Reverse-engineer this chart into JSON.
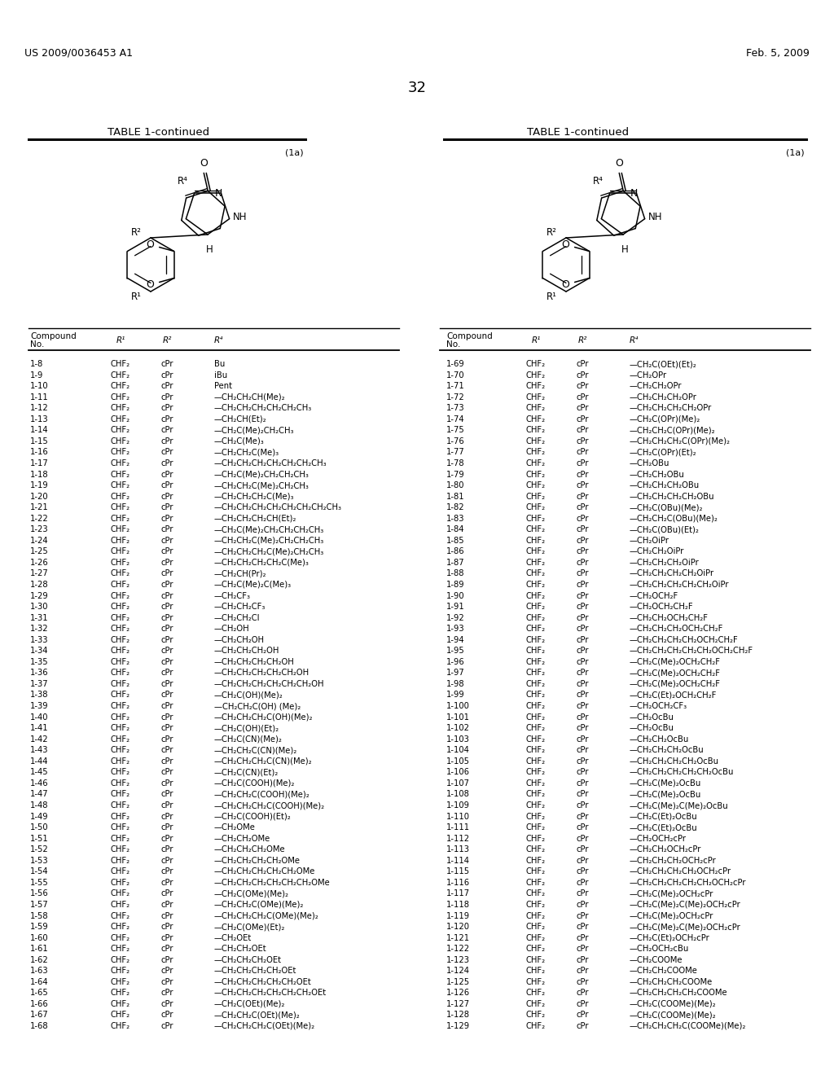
{
  "header_left": "US 2009/0036453 A1",
  "header_right": "Feb. 5, 2009",
  "page_number": "32",
  "table_title": "TABLE 1-continued",
  "formula_label": "(1a)",
  "background_color": "#ffffff",
  "text_color": "#000000",
  "left_data": [
    [
      "1-8",
      "CHF₂",
      "cPr",
      "Bu"
    ],
    [
      "1-9",
      "CHF₂",
      "cPr",
      "iBu"
    ],
    [
      "1-10",
      "CHF₂",
      "cPr",
      "Pent"
    ],
    [
      "1-11",
      "CHF₂",
      "cPr",
      "—CH₂CH₂CH(Me)₂"
    ],
    [
      "1-12",
      "CHF₂",
      "cPr",
      "—CH₂CH₂CH₂CH₂CH₂CH₃"
    ],
    [
      "1-13",
      "CHF₂",
      "cPr",
      "—CH₂CH(Et)₂"
    ],
    [
      "1-14",
      "CHF₂",
      "cPr",
      "—CH₂C(Me)₂CH₂CH₃"
    ],
    [
      "1-15",
      "CHF₂",
      "cPr",
      "—CH₂C(Me)₃"
    ],
    [
      "1-16",
      "CHF₂",
      "cPr",
      "—CH₂CH₂C(Me)₃"
    ],
    [
      "1-17",
      "CHF₂",
      "cPr",
      "—CH₂CH₂CH₂CH₂CH₂CH₂CH₃"
    ],
    [
      "1-18",
      "CHF₂",
      "cPr",
      "—CH₂C(Me)₂CH₂CH₂CH₃"
    ],
    [
      "1-19",
      "CHF₂",
      "cPr",
      "—CH₂CH₂C(Me)₂CH₂CH₃"
    ],
    [
      "1-20",
      "CHF₂",
      "cPr",
      "—CH₂CH₂CH₂C(Me)₃"
    ],
    [
      "1-21",
      "CHF₂",
      "cPr",
      "—CH₂CH₂CH₂CH₂CH₂CH₂CH₂CH₃"
    ],
    [
      "1-22",
      "CHF₂",
      "cPr",
      "—CH₂CH₂CH₂CH(Et)₂"
    ],
    [
      "1-23",
      "CHF₂",
      "cPr",
      "—CH₂C(Me)₂CH₂CH₂CH₂CH₃"
    ],
    [
      "1-24",
      "CHF₂",
      "cPr",
      "—CH₂CH₂C(Me)₂CH₂CH₂CH₃"
    ],
    [
      "1-25",
      "CHF₂",
      "cPr",
      "—CH₂CH₂CH₂C(Me)₂CH₂CH₃"
    ],
    [
      "1-26",
      "CHF₂",
      "cPr",
      "—CH₂CH₂CH₂CH₂C(Me)₃"
    ],
    [
      "1-27",
      "CHF₂",
      "cPr",
      "—CH₂CH(Pr)₂"
    ],
    [
      "1-28",
      "CHF₂",
      "cPr",
      "—CH₂C(Me)₂C(Me)₃"
    ],
    [
      "1-29",
      "CHF₂",
      "cPr",
      "—CH₂CF₃"
    ],
    [
      "1-30",
      "CHF₂",
      "cPr",
      "—CH₂CH₂CF₃"
    ],
    [
      "1-31",
      "CHF₂",
      "cPr",
      "—CH₂CH₂Cl"
    ],
    [
      "1-32",
      "CHF₂",
      "cPr",
      "—CH₂OH"
    ],
    [
      "1-33",
      "CHF₂",
      "cPr",
      "—CH₂CH₂OH"
    ],
    [
      "1-34",
      "CHF₂",
      "cPr",
      "—CH₂CH₂CH₂OH"
    ],
    [
      "1-35",
      "CHF₂",
      "cPr",
      "—CH₂CH₂CH₂CH₂OH"
    ],
    [
      "1-36",
      "CHF₂",
      "cPr",
      "—CH₂CH₂CH₂CH₂CH₂OH"
    ],
    [
      "1-37",
      "CHF₂",
      "cPr",
      "—CH₂CH₂CH₂CH₂CH₂CH₂OH"
    ],
    [
      "1-38",
      "CHF₂",
      "cPr",
      "—CH₂C(OH)(Me)₂"
    ],
    [
      "1-39",
      "CHF₂",
      "cPr",
      "—CH₂CH₂C(OH) (Me)₂"
    ],
    [
      "1-40",
      "CHF₂",
      "cPr",
      "—CH₂CH₂CH₂C(OH)(Me)₂"
    ],
    [
      "1-41",
      "CHF₂",
      "cPr",
      "—CH₂C(OH)(Et)₂"
    ],
    [
      "1-42",
      "CHF₂",
      "cPr",
      "—CH₂C(CN)(Me)₂"
    ],
    [
      "1-43",
      "CHF₂",
      "cPr",
      "—CH₂CH₂C(CN)(Me)₂"
    ],
    [
      "1-44",
      "CHF₂",
      "cPr",
      "—CH₂CH₂CH₂C(CN)(Me)₂"
    ],
    [
      "1-45",
      "CHF₂",
      "cPr",
      "—CH₂C(CN)(Et)₂"
    ],
    [
      "1-46",
      "CHF₂",
      "cPr",
      "—CH₂C(COOH)(Me)₂"
    ],
    [
      "1-47",
      "CHF₂",
      "cPr",
      "—CH₂CH₂C(COOH)(Me)₂"
    ],
    [
      "1-48",
      "CHF₂",
      "cPr",
      "—CH₂CH₂CH₂C(COOH)(Me)₂"
    ],
    [
      "1-49",
      "CHF₂",
      "cPr",
      "—CH₂C(COOH)(Et)₂"
    ],
    [
      "1-50",
      "CHF₂",
      "cPr",
      "—CH₂OMe"
    ],
    [
      "1-51",
      "CHF₂",
      "cPr",
      "—CH₂CH₂OMe"
    ],
    [
      "1-52",
      "CHF₂",
      "cPr",
      "—CH₂CH₂CH₂OMe"
    ],
    [
      "1-53",
      "CHF₂",
      "cPr",
      "—CH₂CH₂CH₂CH₂OMe"
    ],
    [
      "1-54",
      "CHF₂",
      "cPr",
      "—CH₂CH₂CH₂CH₂CH₂OMe"
    ],
    [
      "1-55",
      "CHF₂",
      "cPr",
      "—CH₂CH₂CH₂CH₂CH₂CH₂OMe"
    ],
    [
      "1-56",
      "CHF₂",
      "cPr",
      "—CH₂C(OMe)(Me)₂"
    ],
    [
      "1-57",
      "CHF₂",
      "cPr",
      "—CH₂CH₂C(OMe)(Me)₂"
    ],
    [
      "1-58",
      "CHF₂",
      "cPr",
      "—CH₂CH₂CH₂C(OMe)(Me)₂"
    ],
    [
      "1-59",
      "CHF₂",
      "cPr",
      "—CH₂C(OMe)(Et)₂"
    ],
    [
      "1-60",
      "CHF₂",
      "cPr",
      "—CH₂OEt"
    ],
    [
      "1-61",
      "CHF₂",
      "cPr",
      "—CH₂CH₂OEt"
    ],
    [
      "1-62",
      "CHF₂",
      "cPr",
      "—CH₂CH₂CH₂OEt"
    ],
    [
      "1-63",
      "CHF₂",
      "cPr",
      "—CH₂CH₂CH₂CH₂OEt"
    ],
    [
      "1-64",
      "CHF₂",
      "cPr",
      "—CH₂CH₂CH₂CH₂CH₂OEt"
    ],
    [
      "1-65",
      "CHF₂",
      "cPr",
      "—CH₂CH₂CH₂CH₂CH₂CH₂OEt"
    ],
    [
      "1-66",
      "CHF₂",
      "cPr",
      "—CH₂C(OEt)(Me)₂"
    ],
    [
      "1-67",
      "CHF₂",
      "cPr",
      "—CH₂CH₂C(OEt)(Me)₂"
    ],
    [
      "1-68",
      "CHF₂",
      "cPr",
      "—CH₂CH₂CH₂C(OEt)(Me)₂"
    ]
  ],
  "right_data": [
    [
      "1-69",
      "CHF₂",
      "cPr",
      "—CH₂C(OEt)(Et)₂"
    ],
    [
      "1-70",
      "CHF₂",
      "cPr",
      "—CH₂OPr"
    ],
    [
      "1-71",
      "CHF₂",
      "cPr",
      "—CH₂CH₂OPr"
    ],
    [
      "1-72",
      "CHF₂",
      "cPr",
      "—CH₂CH₂CH₂OPr"
    ],
    [
      "1-73",
      "CHF₂",
      "cPr",
      "—CH₂CH₂CH₂CH₂OPr"
    ],
    [
      "1-74",
      "CHF₂",
      "cPr",
      "—CH₂C(OPr)(Me)₂"
    ],
    [
      "1-75",
      "CHF₂",
      "cPr",
      "—CH₂CH₂C(OPr)(Me)₂"
    ],
    [
      "1-76",
      "CHF₂",
      "cPr",
      "—CH₂CH₂CH₂C(OPr)(Me)₂"
    ],
    [
      "1-77",
      "CHF₂",
      "cPr",
      "—CH₂C(OPr)(Et)₂"
    ],
    [
      "1-78",
      "CHF₂",
      "cPr",
      "—CH₂OBu"
    ],
    [
      "1-79",
      "CHF₂",
      "cPr",
      "—CH₂CH₂OBu"
    ],
    [
      "1-80",
      "CHF₂",
      "cPr",
      "—CH₂CH₂CH₂OBu"
    ],
    [
      "1-81",
      "CHF₂",
      "cPr",
      "—CH₂CH₂CH₂CH₂OBu"
    ],
    [
      "1-82",
      "CHF₂",
      "cPr",
      "—CH₂C(OBu)(Me)₂"
    ],
    [
      "1-83",
      "CHF₂",
      "cPr",
      "—CH₂CH₂C(OBu)(Me)₂"
    ],
    [
      "1-84",
      "CHF₂",
      "cPr",
      "—CH₂C(OBu)(Et)₂"
    ],
    [
      "1-85",
      "CHF₂",
      "cPr",
      "—CH₂OiPr"
    ],
    [
      "1-86",
      "CHF₂",
      "cPr",
      "—CH₂CH₂OiPr"
    ],
    [
      "1-87",
      "CHF₂",
      "cPr",
      "—CH₂CH₂CH₂OiPr"
    ],
    [
      "1-88",
      "CHF₂",
      "cPr",
      "—CH₂CH₂CH₂CH₂OiPr"
    ],
    [
      "1-89",
      "CHF₂",
      "cPr",
      "—CH₂CH₂CH₂CH₂CH₂OiPr"
    ],
    [
      "1-90",
      "CHF₂",
      "cPr",
      "—CH₂OCH₂F"
    ],
    [
      "1-91",
      "CHF₂",
      "cPr",
      "—CH₂OCH₂CH₂F"
    ],
    [
      "1-92",
      "CHF₂",
      "cPr",
      "—CH₂CH₂OCH₂CH₂F"
    ],
    [
      "1-93",
      "CHF₂",
      "cPr",
      "—CH₂CH₂CH₂OCH₂CH₂F"
    ],
    [
      "1-94",
      "CHF₂",
      "cPr",
      "—CH₂CH₂CH₂CH₂OCH₂CH₂F"
    ],
    [
      "1-95",
      "CHF₂",
      "cPr",
      "—CH₂CH₂CH₂CH₂CH₂OCH₂CH₂F"
    ],
    [
      "1-96",
      "CHF₂",
      "cPr",
      "—CH₂C(Me)₂OCH₂CH₂F"
    ],
    [
      "1-97",
      "CHF₂",
      "cPr",
      "—CH₂C(Me)₂OCH₂CH₂F"
    ],
    [
      "1-98",
      "CHF₂",
      "cPr",
      "—CH₂C(Me)₂OCH₂CH₂F"
    ],
    [
      "1-99",
      "CHF₂",
      "cPr",
      "—CH₂C(Et)₂OCH₂CH₂F"
    ],
    [
      "1-100",
      "CHF₂",
      "cPr",
      "—CH₂OCH₂CF₃"
    ],
    [
      "1-101",
      "CHF₂",
      "cPr",
      "—CH₂OcBu"
    ],
    [
      "1-102",
      "CHF₂",
      "cPr",
      "—CH₂OcBu"
    ],
    [
      "1-103",
      "CHF₂",
      "cPr",
      "—CH₂CH₂OcBu"
    ],
    [
      "1-104",
      "CHF₂",
      "cPr",
      "—CH₂CH₂CH₂OcBu"
    ],
    [
      "1-105",
      "CHF₂",
      "cPr",
      "—CH₂CH₂CH₂CH₂OcBu"
    ],
    [
      "1-106",
      "CHF₂",
      "cPr",
      "—CH₂CH₂CH₂CH₂CH₂OcBu"
    ],
    [
      "1-107",
      "CHF₂",
      "cPr",
      "—CH₂C(Me)₂OcBu"
    ],
    [
      "1-108",
      "CHF₂",
      "cPr",
      "—CH₂C(Me)₂OcBu"
    ],
    [
      "1-109",
      "CHF₂",
      "cPr",
      "—CH₂C(Me)₂C(Me)₂OcBu"
    ],
    [
      "1-110",
      "CHF₂",
      "cPr",
      "—CH₂C(Et)₂OcBu"
    ],
    [
      "1-111",
      "CHF₂",
      "cPr",
      "—CH₂C(Et)₂OcBu"
    ],
    [
      "1-112",
      "CHF₂",
      "cPr",
      "—CH₂OCH₂cPr"
    ],
    [
      "1-113",
      "CHF₂",
      "cPr",
      "—CH₂CH₂OCH₂cPr"
    ],
    [
      "1-114",
      "CHF₂",
      "cPr",
      "—CH₂CH₂CH₂OCH₂cPr"
    ],
    [
      "1-115",
      "CHF₂",
      "cPr",
      "—CH₂CH₂CH₂CH₂OCH₂cPr"
    ],
    [
      "1-116",
      "CHF₂",
      "cPr",
      "—CH₂CH₂CH₂CH₂CH₂OCH₂cPr"
    ],
    [
      "1-117",
      "CHF₂",
      "cPr",
      "—CH₂C(Me)₂OCH₂cPr"
    ],
    [
      "1-118",
      "CHF₂",
      "cPr",
      "—CH₂C(Me)₂C(Me)₂OCH₂cPr"
    ],
    [
      "1-119",
      "CHF₂",
      "cPr",
      "—CH₂C(Me)₂OCH₂cPr"
    ],
    [
      "1-120",
      "CHF₂",
      "cPr",
      "—CH₂C(Me)₂C(Me)₂OCH₂cPr"
    ],
    [
      "1-121",
      "CHF₂",
      "cPr",
      "—CH₂C(Et)₂OCH₂cPr"
    ],
    [
      "1-122",
      "CHF₂",
      "cPr",
      "—CH₂OCH₂cBu"
    ],
    [
      "1-123",
      "CHF₂",
      "cPr",
      "—CH₂COOMe"
    ],
    [
      "1-124",
      "CHF₂",
      "cPr",
      "—CH₂CH₂COOMe"
    ],
    [
      "1-125",
      "CHF₂",
      "cPr",
      "—CH₂CH₂CH₂COOMe"
    ],
    [
      "1-126",
      "CHF₂",
      "cPr",
      "—CH₂CH₂CH₂CH₂COOMe"
    ],
    [
      "1-127",
      "CHF₂",
      "cPr",
      "—CH₂C(COOMe)(Me)₂"
    ],
    [
      "1-128",
      "CHF₂",
      "cPr",
      "—CH₂C(COOMe)(Me)₂"
    ],
    [
      "1-129",
      "CHF₂",
      "cPr",
      "—CH₂CH₂CH₂C(COOMe)(Me)₂"
    ]
  ]
}
